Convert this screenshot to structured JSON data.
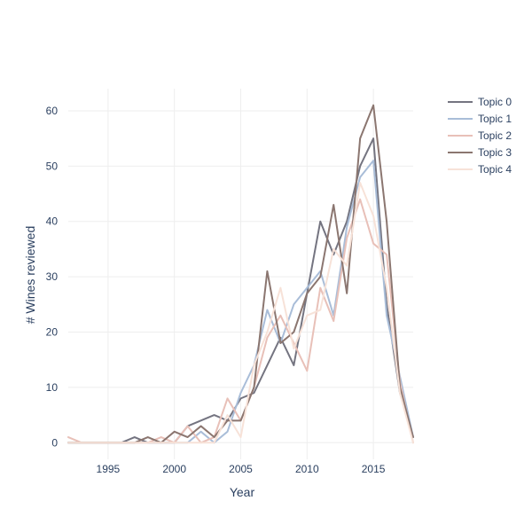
{
  "chart_data": {
    "type": "line",
    "title": "",
    "xlabel": "Year",
    "ylabel": "# Wines reviewed",
    "xlim": [
      1992,
      2018
    ],
    "ylim": [
      -3,
      64
    ],
    "x_ticks": [
      1995,
      2000,
      2005,
      2010,
      2015
    ],
    "y_ticks": [
      0,
      10,
      20,
      30,
      40,
      50,
      60
    ],
    "grid": true,
    "legend_position": "top-right",
    "x": [
      1992,
      1993,
      1994,
      1995,
      1996,
      1997,
      1998,
      1999,
      2000,
      2001,
      2002,
      2003,
      2004,
      2005,
      2006,
      2007,
      2008,
      2009,
      2010,
      2011,
      2012,
      2013,
      2014,
      2015,
      2016,
      2017,
      2018
    ],
    "series": [
      {
        "name": "Topic 0",
        "color": "#747480",
        "opacity": 1,
        "values": [
          0,
          0,
          0,
          0,
          0,
          1,
          0,
          0,
          0,
          3,
          4,
          5,
          4,
          8,
          9,
          14,
          19,
          14,
          27,
          40,
          34,
          40,
          50,
          55,
          25,
          9,
          1
        ]
      },
      {
        "name": "Topic 1",
        "color": "#a9bdd8",
        "opacity": 1,
        "values": [
          0,
          0,
          0,
          0,
          0,
          0,
          0,
          0,
          0,
          0,
          2,
          0,
          2,
          9,
          14,
          24,
          18,
          25,
          28,
          31,
          23,
          39,
          48,
          51,
          23,
          12,
          1
        ]
      },
      {
        "name": "Topic 2",
        "color": "#e8c0b8",
        "opacity": 1,
        "values": [
          1,
          0,
          0,
          0,
          0,
          0,
          0,
          1,
          0,
          3,
          0,
          1,
          8,
          4,
          10,
          19,
          23,
          18,
          13,
          28,
          22,
          37,
          44,
          36,
          34,
          11,
          0
        ]
      },
      {
        "name": "Topic 3",
        "color": "#8b7670",
        "opacity": 1,
        "values": [
          0,
          0,
          0,
          0,
          0,
          0,
          1,
          0,
          2,
          1,
          3,
          1,
          4,
          4,
          10,
          31,
          18,
          20,
          27,
          30,
          43,
          27,
          55,
          61,
          40,
          10,
          1
        ]
      },
      {
        "name": "Topic 4",
        "color": "#f7e2d8",
        "opacity": 1,
        "values": [
          0,
          0,
          0,
          0,
          0,
          0,
          0,
          0,
          0,
          0,
          0,
          0,
          5,
          1,
          14,
          20,
          28,
          17,
          23,
          24,
          35,
          32,
          47,
          41,
          28,
          9,
          0
        ]
      }
    ]
  }
}
